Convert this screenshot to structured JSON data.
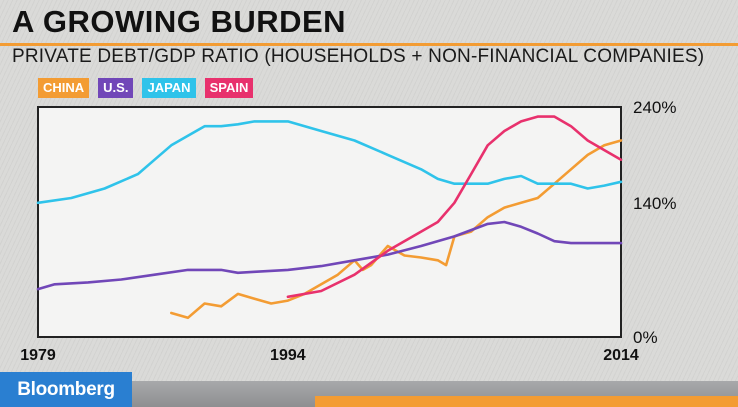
{
  "title": "A GROWING BURDEN",
  "subtitle": "PRIVATE DEBT/GDP RATIO (HOUSEHOLDS + NON-FINANCIAL COMPANIES)",
  "brand": "Bloomberg",
  "colors": {
    "china": "#f39c33",
    "us": "#7147b8",
    "japan": "#2fc3ea",
    "spain": "#e8316d",
    "accent": "#f39c33",
    "brand": "#2a7fd1"
  },
  "chart_data": {
    "type": "line",
    "title": "A GROWING BURDEN",
    "subtitle": "PRIVATE DEBT/GDP RATIO (HOUSEHOLDS + NON-FINANCIAL COMPANIES)",
    "xlabel": "",
    "ylabel": "",
    "xlim": [
      1979,
      2014
    ],
    "ylim": [
      0,
      240
    ],
    "x_ticks": [
      "1979",
      "1994",
      "2014"
    ],
    "y_ticks": [
      "0%",
      "140%",
      "240%"
    ],
    "y_axis_side": "right",
    "legend_position": "top-left",
    "series": [
      {
        "name": "CHINA",
        "color": "#f39c33",
        "x": [
          1987,
          1988,
          1989,
          1990,
          1991,
          1992,
          1993,
          1994,
          1995,
          1996,
          1997,
          1998,
          1998.5,
          1999,
          2000,
          2001,
          2002,
          2003,
          2003.5,
          2004,
          2005,
          2006,
          2007,
          2008,
          2009,
          2010,
          2011,
          2012,
          2013,
          2014
        ],
        "y": [
          25,
          20,
          35,
          32,
          45,
          40,
          35,
          38,
          45,
          55,
          65,
          80,
          70,
          75,
          95,
          85,
          83,
          80,
          75,
          105,
          110,
          125,
          135,
          140,
          145,
          160,
          175,
          190,
          200,
          205
        ]
      },
      {
        "name": "U.S.",
        "color": "#7147b8",
        "x": [
          1979,
          1980,
          1982,
          1984,
          1986,
          1988,
          1989,
          1990,
          1991,
          1992,
          1994,
          1996,
          1998,
          2000,
          2002,
          2004,
          2006,
          2007,
          2008,
          2009,
          2010,
          2011,
          2012,
          2014
        ],
        "y": [
          50,
          55,
          57,
          60,
          65,
          70,
          70,
          70,
          67,
          68,
          70,
          74,
          80,
          86,
          95,
          105,
          118,
          120,
          115,
          108,
          100,
          98,
          98,
          98
        ]
      },
      {
        "name": "JAPAN",
        "color": "#2fc3ea",
        "x": [
          1979,
          1981,
          1983,
          1985,
          1986,
          1987,
          1988,
          1989,
          1990,
          1991,
          1992,
          1994,
          1996,
          1998,
          2000,
          2002,
          2003,
          2004,
          2005,
          2006,
          2007,
          2008,
          2009,
          2010,
          2011,
          2012,
          2013,
          2014
        ],
        "y": [
          140,
          145,
          155,
          170,
          185,
          200,
          210,
          220,
          220,
          222,
          225,
          225,
          215,
          205,
          190,
          175,
          165,
          160,
          160,
          160,
          165,
          168,
          160,
          160,
          160,
          155,
          158,
          162
        ]
      },
      {
        "name": "SPAIN",
        "color": "#e8316d",
        "x": [
          1994,
          1996,
          1998,
          2000,
          2002,
          2003,
          2004,
          2005,
          2006,
          2007,
          2008,
          2009,
          2010,
          2011,
          2012,
          2013,
          2014
        ],
        "y": [
          42,
          48,
          65,
          90,
          110,
          120,
          140,
          170,
          200,
          215,
          225,
          230,
          230,
          220,
          205,
          195,
          185
        ]
      }
    ]
  }
}
